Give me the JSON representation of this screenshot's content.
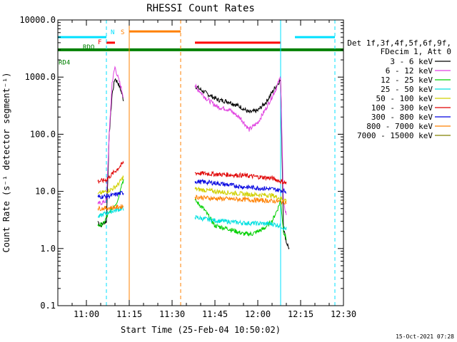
{
  "chart_data": {
    "type": "line",
    "title": "RHESSI Count Rates",
    "xlabel": "Start Time (25-Feb-04 10:50:02)",
    "ylabel": "Count Rate (s⁻¹ detector segment⁻¹)",
    "y_scale": "log",
    "ylim": [
      0.1,
      10000
    ],
    "xlim": [
      "10:50",
      "12:30"
    ],
    "y_ticks": [
      "10000.0",
      "1000.0",
      "100.0",
      "10.0",
      "1.0",
      "0.1"
    ],
    "x_ticks": [
      "11:00",
      "11:15",
      "11:30",
      "11:45",
      "12:00",
      "12:15",
      "12:30"
    ],
    "footer": "15-Oct-2021 07:28",
    "legend": {
      "placement": "right",
      "header": [
        "Det 1f,3f,4f,5f,6f,9f,",
        "FDecim 1, Att 0"
      ],
      "items": [
        {
          "label": "3 - 6 keV",
          "color": "#000000"
        },
        {
          "label": "6 - 12 keV",
          "color": "#e040e0"
        },
        {
          "label": "12 - 25 keV",
          "color": "#00d000"
        },
        {
          "label": "25 - 50 keV",
          "color": "#00e0e0"
        },
        {
          "label": "50 - 100 keV",
          "color": "#d0d000"
        },
        {
          "label": "100 - 300 keV",
          "color": "#e00000"
        },
        {
          "label": "300 - 800 keV",
          "color": "#0000e0"
        },
        {
          "label": "800 - 7000 keV",
          "color": "#ff8000"
        },
        {
          "label": "7000 - 15000 keV",
          "color": "#808000"
        }
      ]
    },
    "flag_bars": [
      {
        "label": "N",
        "color": "#00e0ff",
        "segments": [
          [
            "10:50",
            "11:07"
          ],
          [
            "12:13",
            "12:27"
          ]
        ],
        "level": 5000
      },
      {
        "label": "S",
        "color": "#ff8000",
        "segments": [
          [
            "11:15",
            "11:33"
          ]
        ],
        "level": 6300
      },
      {
        "label": "F",
        "color": "#ff0000",
        "segments": [
          [
            "11:07",
            "11:10"
          ],
          [
            "11:38",
            "12:08"
          ]
        ],
        "level": 4000
      },
      {
        "label": "RDO",
        "color": "#008000",
        "segments": [
          [
            "10:50",
            "12:30"
          ]
        ],
        "level": 3000
      },
      {
        "label": "RD4",
        "color": "#008000",
        "segments": [],
        "level": 2350
      }
    ],
    "vlines": [
      {
        "time": "11:07",
        "color": "#00e0ff",
        "style": "dashed"
      },
      {
        "time": "11:15",
        "color": "#ff8000",
        "style": "solid"
      },
      {
        "time": "11:33",
        "color": "#ff8000",
        "style": "dashed"
      },
      {
        "time": "12:08",
        "color": "#00e0ff",
        "style": "solid"
      },
      {
        "time": "12:27",
        "color": "#00e0ff",
        "style": "dashed"
      }
    ],
    "series": [
      {
        "name": "3 - 6 keV",
        "color": "#000000",
        "x": [
          "11:04",
          "11:05",
          "11:06",
          "11:07",
          "11:08",
          "11:09",
          "11:10",
          "11:11",
          "11:12",
          "11:13",
          "11:38",
          "11:42",
          "11:46",
          "11:50",
          "11:54",
          "11:57",
          "12:00",
          "12:03",
          "12:06",
          "12:08",
          "12:09",
          "12:10",
          "12:11"
        ],
        "y": [
          3,
          2.5,
          2.8,
          3,
          100,
          500,
          950,
          800,
          600,
          400,
          700,
          520,
          400,
          370,
          300,
          240,
          260,
          370,
          650,
          900,
          2.3,
          1.3,
          1.0
        ]
      },
      {
        "name": "6 - 12 keV",
        "color": "#e040e0",
        "x": [
          "11:04",
          "11:06",
          "11:07",
          "11:08",
          "11:09",
          "11:10",
          "11:11",
          "11:12",
          "11:13",
          "11:38",
          "11:42",
          "11:46",
          "11:50",
          "11:54",
          "11:57",
          "12:00",
          "12:03",
          "12:06",
          "12:08",
          "12:09",
          "12:10"
        ],
        "y": [
          6,
          6.5,
          7,
          100,
          800,
          1500,
          1000,
          700,
          450,
          700,
          420,
          300,
          270,
          190,
          120,
          160,
          290,
          570,
          1000,
          6,
          4
        ]
      },
      {
        "name": "12 - 25 keV",
        "color": "#00d000",
        "x": [
          "11:04",
          "11:06",
          "11:07",
          "11:09",
          "11:11",
          "11:12",
          "11:13",
          "11:38",
          "11:41",
          "11:45",
          "11:50",
          "11:55",
          "11:58",
          "12:02",
          "12:05",
          "12:07",
          "12:08",
          "12:09",
          "12:10"
        ],
        "y": [
          2.5,
          2.7,
          3.5,
          5,
          7,
          12,
          16,
          7,
          5,
          2.5,
          2.2,
          1.8,
          1.8,
          2.2,
          3,
          5,
          7,
          2,
          1.5
        ]
      },
      {
        "name": "25 - 50 keV",
        "color": "#00e0e0",
        "x": [
          "11:04",
          "11:06",
          "11:07",
          "11:09",
          "11:11",
          "11:13",
          "11:38",
          "11:45",
          "11:55",
          "12:05",
          "12:08",
          "12:09",
          "12:10"
        ],
        "y": [
          3.5,
          4,
          4.2,
          4.5,
          4.8,
          5,
          3.5,
          3.1,
          2.8,
          2.7,
          2.5,
          2.3,
          2.2
        ]
      },
      {
        "name": "50 - 100 keV",
        "color": "#d0d000",
        "x": [
          "11:04",
          "11:07",
          "11:09",
          "11:11",
          "11:13",
          "11:38",
          "11:45",
          "11:55",
          "12:05",
          "12:10"
        ],
        "y": [
          9,
          10,
          11,
          13,
          18,
          11,
          10,
          9,
          8.5,
          7
        ]
      },
      {
        "name": "100 - 300 keV",
        "color": "#e00000",
        "x": [
          "11:04",
          "11:06",
          "11:07",
          "11:09",
          "11:11",
          "11:13",
          "11:38",
          "11:45",
          "11:55",
          "12:05",
          "12:08",
          "12:10"
        ],
        "y": [
          15,
          15.5,
          16,
          20,
          25,
          32,
          21,
          20,
          19,
          17,
          15,
          14
        ]
      },
      {
        "name": "300 - 800 keV",
        "color": "#0000e0",
        "x": [
          "11:04",
          "11:07",
          "11:09",
          "11:11",
          "11:13",
          "11:38",
          "11:45",
          "11:55",
          "12:05",
          "12:10"
        ],
        "y": [
          8,
          8.2,
          8.5,
          9,
          9.5,
          15,
          14,
          12,
          11,
          10
        ]
      },
      {
        "name": "800 - 7000 keV",
        "color": "#ff8000",
        "x": [
          "11:04",
          "11:07",
          "11:09",
          "11:11",
          "11:13",
          "11:38",
          "11:45",
          "11:55",
          "12:05",
          "12:10"
        ],
        "y": [
          5,
          5.1,
          5.2,
          5.3,
          5.5,
          8,
          7.5,
          7.2,
          6.8,
          6.5
        ]
      },
      {
        "name": "7000 - 15000 keV",
        "color": "#808000",
        "x": [],
        "y": []
      }
    ]
  }
}
